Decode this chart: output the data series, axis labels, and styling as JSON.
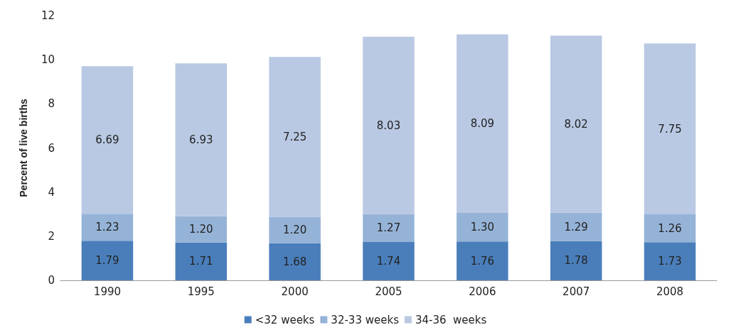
{
  "chart_data": {
    "type": "bar",
    "stacked": true,
    "ylabel": "Percent of live births",
    "categories": [
      "1990",
      "1995",
      "2000",
      "2005",
      "2006",
      "2007",
      "2008"
    ],
    "series": [
      {
        "name": "<32 weeks",
        "color": "#4a7ebb",
        "values": [
          1.79,
          1.71,
          1.68,
          1.74,
          1.76,
          1.78,
          1.73
        ],
        "value_labels": [
          "1.79",
          "1.71",
          "1.68",
          "1.74",
          "1.76",
          "1.78",
          "1.73"
        ]
      },
      {
        "name": "32-33 weeks",
        "color": "#95b3d7",
        "values": [
          1.23,
          1.2,
          1.2,
          1.27,
          1.3,
          1.29,
          1.26
        ],
        "value_labels": [
          "1.23",
          "1.20",
          "1.20",
          "1.27",
          "1.30",
          "1.29",
          "1.26"
        ]
      },
      {
        "name": "34-36  weeks",
        "color": "#b9c8e3",
        "values": [
          6.69,
          6.93,
          7.25,
          8.03,
          8.09,
          8.02,
          7.75
        ],
        "value_labels": [
          "6.69",
          "6.93",
          "7.25",
          "8.03",
          "8.09",
          "8.02",
          "7.75"
        ]
      }
    ],
    "ylim": [
      0,
      12
    ],
    "yticks": [
      0,
      2,
      4,
      6,
      8,
      10,
      12
    ],
    "grid": false,
    "legend": "bottom"
  }
}
